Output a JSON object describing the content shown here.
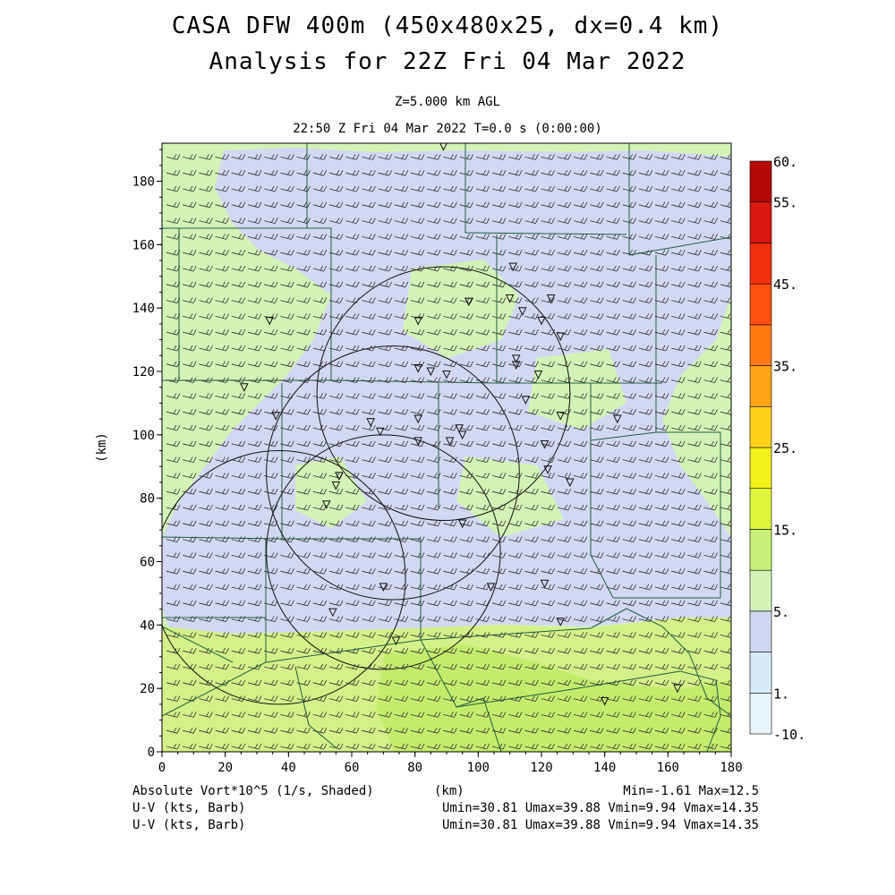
{
  "title": {
    "line1": "CASA DFW 400m (450x480x25, dx=0.4 km)",
    "line2": "Analysis for 22Z Fri 04 Mar 2022"
  },
  "subtitle": {
    "level": "Z=5.000 km AGL",
    "time": "22:50 Z Fri 04 Mar 2022   T=0.0 s (0:00:00)"
  },
  "axes": {
    "x_label": "(km)",
    "y_label": "(km)",
    "x_range": [
      0,
      180
    ],
    "y_range": [
      0,
      192
    ],
    "x_ticks": [
      "0",
      "20",
      "40",
      "60",
      "80",
      "100",
      "120",
      "140",
      "160",
      "180"
    ],
    "y_ticks": [
      "0",
      "20",
      "40",
      "60",
      "80",
      "100",
      "120",
      "140",
      "160",
      "180"
    ]
  },
  "colorbar": {
    "labels": [
      "60.",
      "55.",
      "45.",
      "35.",
      "25.",
      "15.",
      "5.",
      "1.",
      "-10."
    ],
    "colors": [
      "#e8f6fb",
      "#d6eaf7",
      "#cfd6f0",
      "#d4f2b8",
      "#c8f078",
      "#ddf53a",
      "#f2f21a",
      "#ffd21a",
      "#ffa31a",
      "#ff7a12",
      "#ff5010",
      "#f23010",
      "#d81810",
      "#b40808"
    ]
  },
  "field_colors": {
    "base": "#d3f3b6",
    "low": "#d2d8f2",
    "high": "#d4f088",
    "higher": "#c4ec6c"
  },
  "footer": {
    "field_label": "Absolute Vort*10^5 (1/s, Shaded)",
    "x_unit": "(km)",
    "minmax": "Min=-1.61 Max=12.5",
    "uv1_label": "U-V (kts, Barb)",
    "uv1_stats": "Umin=30.81 Umax=39.88 Vmin=9.94 Vmax=14.35",
    "uv2_label": "U-V (kts, Barb)",
    "uv2_stats": "Umin=30.81 Umax=39.88 Vmin=9.94 Vmax=14.35"
  },
  "map": {
    "radar_rings": [
      {
        "cx": 89,
        "cy": 113,
        "r": 40
      },
      {
        "cx": 73,
        "cy": 88,
        "r": 40
      },
      {
        "cx": 37,
        "cy": 55,
        "r": 40
      },
      {
        "cx": 70,
        "cy": 63,
        "r": 37
      }
    ],
    "stations": [
      [
        89,
        191
      ],
      [
        34,
        136
      ],
      [
        26,
        115
      ],
      [
        36,
        106
      ],
      [
        66,
        104
      ],
      [
        69,
        101
      ],
      [
        81,
        136
      ],
      [
        81,
        121
      ],
      [
        85,
        120
      ],
      [
        90,
        119
      ],
      [
        97,
        142
      ],
      [
        111,
        153
      ],
      [
        110,
        143
      ],
      [
        114,
        139
      ],
      [
        120,
        136
      ],
      [
        123,
        143
      ],
      [
        126,
        131
      ],
      [
        112,
        122
      ],
      [
        112,
        124
      ],
      [
        119,
        119
      ],
      [
        115,
        111
      ],
      [
        126,
        106
      ],
      [
        81,
        105
      ],
      [
        81,
        98
      ],
      [
        91,
        98
      ],
      [
        94,
        102
      ],
      [
        95,
        100
      ],
      [
        121,
        97
      ],
      [
        122,
        89
      ],
      [
        129,
        85
      ],
      [
        144,
        105
      ],
      [
        56,
        87
      ],
      [
        52,
        78
      ],
      [
        55,
        84
      ],
      [
        95,
        72
      ],
      [
        70,
        52
      ],
      [
        104,
        52
      ],
      [
        121,
        53
      ],
      [
        126,
        41
      ],
      [
        54,
        44
      ],
      [
        74,
        35
      ],
      [
        140,
        16
      ],
      [
        163,
        20
      ]
    ]
  }
}
